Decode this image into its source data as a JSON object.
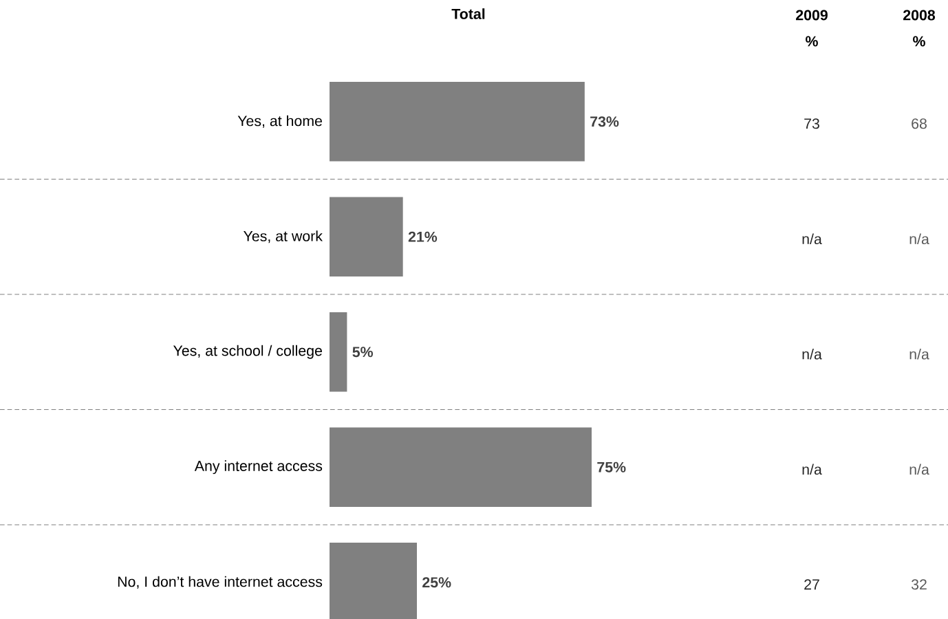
{
  "chart_data": {
    "type": "bar",
    "orientation": "horizontal",
    "title": "Total",
    "categories": [
      "Yes, at home",
      "Yes, at work",
      "Yes, at school / college",
      "Any internet access",
      "No, I don’t have internet access"
    ],
    "values": [
      73,
      21,
      5,
      75,
      25
    ],
    "color": "#808080",
    "value_labels": [
      "73%",
      "21%",
      "5%",
      "75%",
      "25%"
    ],
    "tick_labels": "y",
    "annotations": [
      "2009",
      "%",
      "2008",
      "%",
      "73",
      "68",
      "n/a",
      "n/a",
      "n/a",
      "n/a",
      "n/a",
      "n/a",
      "27",
      "32"
    ]
  }
}
